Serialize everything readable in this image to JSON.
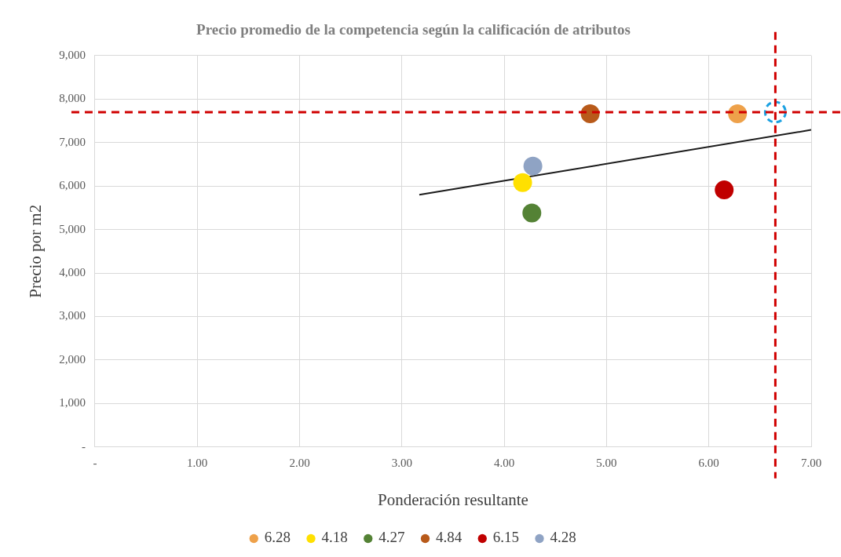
{
  "chart_data": {
    "type": "scatter",
    "title": "Precio promedio de la competencia según la calificación de atributos",
    "xlabel": "Ponderación resultante",
    "ylabel": "Precio por m2",
    "xlim": [
      0,
      7
    ],
    "xticks": [
      {
        "value": 0,
        "label": "-"
      },
      {
        "value": 1,
        "label": "1.00"
      },
      {
        "value": 2,
        "label": "2.00"
      },
      {
        "value": 3,
        "label": "3.00"
      },
      {
        "value": 4,
        "label": "4.00"
      },
      {
        "value": 5,
        "label": "5.00"
      },
      {
        "value": 6,
        "label": "6.00"
      },
      {
        "value": 7,
        "label": "7.00"
      }
    ],
    "ylim": [
      0,
      9000
    ],
    "yticks": [
      {
        "value": 0,
        "label": "-"
      },
      {
        "value": 1000,
        "label": "1,000"
      },
      {
        "value": 2000,
        "label": "2,000"
      },
      {
        "value": 3000,
        "label": "3,000"
      },
      {
        "value": 4000,
        "label": "4,000"
      },
      {
        "value": 5000,
        "label": "5,000"
      },
      {
        "value": 6000,
        "label": "6,000"
      },
      {
        "value": 7000,
        "label": "7,000"
      },
      {
        "value": 8000,
        "label": "8,000"
      },
      {
        "value": 9000,
        "label": "9,000"
      }
    ],
    "grid": true,
    "legend": "bottom",
    "marker": "circle",
    "series": [
      {
        "name": "6.28",
        "color": "#eea14a",
        "x": [
          6.28
        ],
        "values": [
          7660
        ]
      },
      {
        "name": "4.18",
        "color": "#ffe000",
        "x": [
          4.18
        ],
        "values": [
          6080
        ]
      },
      {
        "name": "4.27",
        "color": "#548235",
        "x": [
          4.27
        ],
        "values": [
          5380
        ]
      },
      {
        "name": "4.84",
        "color": "#b85a1a",
        "x": [
          4.84
        ],
        "values": [
          7660
        ]
      },
      {
        "name": "6.15",
        "color": "#c00000",
        "x": [
          6.15
        ],
        "values": [
          5910
        ]
      },
      {
        "name": "4.28",
        "color": "#8fa3c4",
        "x": [
          4.28
        ],
        "values": [
          6460
        ]
      },
      {
        "color": "#1ba1e2",
        "x": [
          6.65
        ],
        "values": [
          7700
        ],
        "line_style": "dashed",
        "marker": "circle"
      },
      {
        "type": "line",
        "color": "#1a1a1a",
        "x": [
          3.17,
          7.0
        ],
        "values": [
          5800,
          7290
        ],
        "marker": "none"
      }
    ],
    "ref_lines": [
      {
        "axis": "y",
        "value": 7700,
        "color": "#d00000",
        "line_style": "dashed"
      },
      {
        "axis": "x",
        "value": 6.65,
        "color": "#d00000",
        "line_style": "dashed"
      }
    ]
  }
}
